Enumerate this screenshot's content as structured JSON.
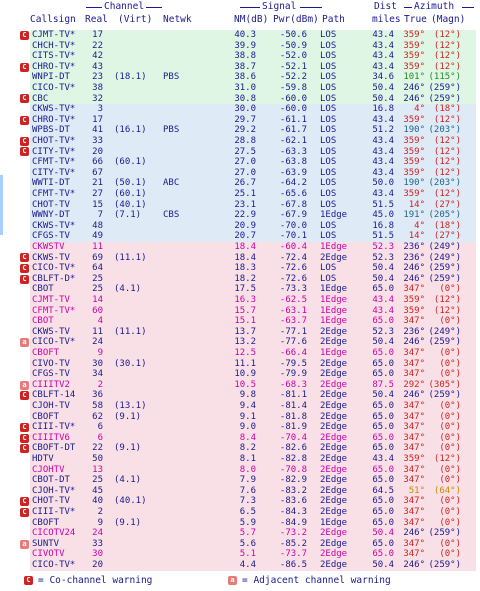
{
  "header": {
    "group_channel": "Channel",
    "group_signal": "Signal",
    "group_azimuth": "Azimuth",
    "group_dist": "Dist",
    "col_callsign": "Callsign",
    "col_real": "Real",
    "col_virt": "(Virt)",
    "col_netwk": "Netwk",
    "col_nm": "NM(dB)",
    "col_pwr": "Pwr(dBm)",
    "col_path": "Path",
    "col_miles": "miles",
    "col_true": "True",
    "col_magn": "(Magn)"
  },
  "colors": {
    "bg_green": "#e0f6e4",
    "bg_blue": "#dfeaf7",
    "bg_pink": "#f8e0e6",
    "text_navy": "#1a1a8c",
    "text_magenta": "#cc00aa",
    "warn_co": "#cc2222",
    "warn_adj": "#e87a7a",
    "az_red": "#cc2222",
    "az_green": "#228822",
    "az_blue": "#226688",
    "az_orange": "#cc8800",
    "az_darkblue": "#1a1a8c"
  },
  "rows": [
    {
      "w": "co",
      "call": "CJMT-TV*",
      "real": "17",
      "virt": "",
      "net": "",
      "nm": "40.3",
      "pwr": "-50.6",
      "path": "LOS",
      "dist": "43.4",
      "tru": "359°",
      "mag": "(12°)",
      "bg": "green",
      "tc": "navy",
      "ac": "red"
    },
    {
      "w": "",
      "call": "CHCH-TV*",
      "real": "22",
      "virt": "",
      "net": "",
      "nm": "39.9",
      "pwr": "-50.9",
      "path": "LOS",
      "dist": "43.4",
      "tru": "359°",
      "mag": "(12°)",
      "bg": "green",
      "tc": "navy",
      "ac": "red"
    },
    {
      "w": "",
      "call": "CITS-TV*",
      "real": "42",
      "virt": "",
      "net": "",
      "nm": "38.8",
      "pwr": "-52.0",
      "path": "LOS",
      "dist": "43.4",
      "tru": "359°",
      "mag": "(12°)",
      "bg": "green",
      "tc": "navy",
      "ac": "red"
    },
    {
      "w": "co",
      "call": "CHRO-TV*",
      "real": "43",
      "virt": "",
      "net": "",
      "nm": "38.7",
      "pwr": "-52.1",
      "path": "LOS",
      "dist": "43.4",
      "tru": "359°",
      "mag": "(12°)",
      "bg": "green",
      "tc": "navy",
      "ac": "red"
    },
    {
      "w": "",
      "call": "WNPI-DT",
      "real": "23",
      "virt": "(18.1)",
      "net": "PBS",
      "nm": "38.6",
      "pwr": "-52.2",
      "path": "LOS",
      "dist": "34.6",
      "tru": "101°",
      "mag": "(115°)",
      "bg": "green",
      "tc": "navy",
      "ac": "green"
    },
    {
      "w": "",
      "call": "CICO-TV*",
      "real": "38",
      "virt": "",
      "net": "",
      "nm": "31.0",
      "pwr": "-59.8",
      "path": "LOS",
      "dist": "50.4",
      "tru": "246°",
      "mag": "(259°)",
      "bg": "green",
      "tc": "navy",
      "ac": "darkblue"
    },
    {
      "w": "co",
      "call": "CBC",
      "real": "32",
      "virt": "",
      "net": "",
      "nm": "30.8",
      "pwr": "-60.0",
      "path": "LOS",
      "dist": "50.4",
      "tru": "246°",
      "mag": "(259°)",
      "bg": "green",
      "tc": "navy",
      "ac": "darkblue"
    },
    {
      "w": "",
      "call": "CKWS-TV*",
      "real": "3",
      "virt": "",
      "net": "",
      "nm": "30.0",
      "pwr": "-60.0",
      "path": "LOS",
      "dist": "16.8",
      "tru": "4°",
      "mag": "(18°)",
      "bg": "blue",
      "tc": "navy",
      "ac": "red"
    },
    {
      "w": "co",
      "call": "CHRO-TV*",
      "real": "17",
      "virt": "",
      "net": "",
      "nm": "29.7",
      "pwr": "-61.1",
      "path": "LOS",
      "dist": "43.4",
      "tru": "359°",
      "mag": "(12°)",
      "bg": "blue",
      "tc": "navy",
      "ac": "red"
    },
    {
      "w": "",
      "call": "WPBS-DT",
      "real": "41",
      "virt": "(16.1)",
      "net": "PBS",
      "nm": "29.2",
      "pwr": "-61.7",
      "path": "LOS",
      "dist": "51.2",
      "tru": "190°",
      "mag": "(203°)",
      "bg": "blue",
      "tc": "navy",
      "ac": "blue"
    },
    {
      "w": "co",
      "call": "CHOT-TV*",
      "real": "33",
      "virt": "",
      "net": "",
      "nm": "28.8",
      "pwr": "-62.1",
      "path": "LOS",
      "dist": "43.4",
      "tru": "359°",
      "mag": "(12°)",
      "bg": "blue",
      "tc": "navy",
      "ac": "red"
    },
    {
      "w": "co",
      "call": "CITY-TV*",
      "real": "20",
      "virt": "",
      "net": "",
      "nm": "27.5",
      "pwr": "-63.3",
      "path": "LOS",
      "dist": "43.4",
      "tru": "359°",
      "mag": "(12°)",
      "bg": "blue",
      "tc": "navy",
      "ac": "red"
    },
    {
      "w": "",
      "call": "CFMT-TV*",
      "real": "66",
      "virt": "(60.1)",
      "net": "",
      "nm": "27.0",
      "pwr": "-63.8",
      "path": "LOS",
      "dist": "43.4",
      "tru": "359°",
      "mag": "(12°)",
      "bg": "blue",
      "tc": "navy",
      "ac": "red"
    },
    {
      "w": "",
      "call": "CITY-TV*",
      "real": "67",
      "virt": "",
      "net": "",
      "nm": "27.0",
      "pwr": "-63.9",
      "path": "LOS",
      "dist": "43.4",
      "tru": "359°",
      "mag": "(12°)",
      "bg": "blue",
      "tc": "navy",
      "ac": "red"
    },
    {
      "w": "",
      "call": "WWTI-DT",
      "real": "21",
      "virt": "(50.1)",
      "net": "ABC",
      "nm": "26.7",
      "pwr": "-64.2",
      "path": "LOS",
      "dist": "50.0",
      "tru": "190°",
      "mag": "(203°)",
      "bg": "blue",
      "tc": "navy",
      "ac": "blue"
    },
    {
      "w": "",
      "call": "CFMT-TV*",
      "real": "27",
      "virt": "(60.1)",
      "net": "",
      "nm": "25.1",
      "pwr": "-65.6",
      "path": "LOS",
      "dist": "43.4",
      "tru": "359°",
      "mag": "(12°)",
      "bg": "blue",
      "tc": "navy",
      "ac": "red"
    },
    {
      "w": "",
      "call": "CHOT-TV",
      "real": "15",
      "virt": "(40.1)",
      "net": "",
      "nm": "23.1",
      "pwr": "-67.8",
      "path": "LOS",
      "dist": "51.5",
      "tru": "14°",
      "mag": "(27°)",
      "bg": "blue",
      "tc": "navy",
      "ac": "red"
    },
    {
      "w": "",
      "call": "WWNY-DT",
      "real": "7",
      "virt": "(7.1)",
      "net": "CBS",
      "nm": "22.9",
      "pwr": "-67.9",
      "path": "1Edge",
      "dist": "45.0",
      "tru": "191°",
      "mag": "(205°)",
      "bg": "blue",
      "tc": "navy",
      "ac": "blue"
    },
    {
      "w": "",
      "call": "CKWS-TV*",
      "real": "48",
      "virt": "",
      "net": "",
      "nm": "20.9",
      "pwr": "-70.0",
      "path": "LOS",
      "dist": "16.8",
      "tru": "4°",
      "mag": "(18°)",
      "bg": "blue",
      "tc": "navy",
      "ac": "red"
    },
    {
      "w": "",
      "call": "CFGS-TV",
      "real": "49",
      "virt": "",
      "net": "",
      "nm": "20.7",
      "pwr": "-70.1",
      "path": "LOS",
      "dist": "51.5",
      "tru": "14°",
      "mag": "(27°)",
      "bg": "blue",
      "tc": "navy",
      "ac": "red"
    },
    {
      "w": "",
      "call": "CKWSTV",
      "real": "11",
      "virt": "",
      "net": "",
      "nm": "18.4",
      "pwr": "-60.4",
      "path": "1Edge",
      "dist": "52.3",
      "tru": "236°",
      "mag": "(249°)",
      "bg": "pink",
      "tc": "magenta",
      "ac": "darkblue"
    },
    {
      "w": "co",
      "call": "CKWS-TV",
      "real": "69",
      "virt": "(11.1)",
      "net": "",
      "nm": "18.4",
      "pwr": "-72.4",
      "path": "2Edge",
      "dist": "52.3",
      "tru": "236°",
      "mag": "(249°)",
      "bg": "pink",
      "tc": "navy",
      "ac": "darkblue"
    },
    {
      "w": "co",
      "call": "CICO-TV*",
      "real": "64",
      "virt": "",
      "net": "",
      "nm": "18.3",
      "pwr": "-72.6",
      "path": "LOS",
      "dist": "50.4",
      "tru": "246°",
      "mag": "(259°)",
      "bg": "pink",
      "tc": "navy",
      "ac": "darkblue"
    },
    {
      "w": "co",
      "call": "CBLFT-D*",
      "real": "25",
      "virt": "",
      "net": "",
      "nm": "18.2",
      "pwr": "-72.6",
      "path": "LOS",
      "dist": "50.4",
      "tru": "246°",
      "mag": "(259°)",
      "bg": "pink",
      "tc": "navy",
      "ac": "darkblue"
    },
    {
      "w": "",
      "call": "CBOT",
      "real": "25",
      "virt": "(4.1)",
      "net": "",
      "nm": "17.5",
      "pwr": "-73.3",
      "path": "1Edge",
      "dist": "65.0",
      "tru": "347°",
      "mag": "(0°)",
      "bg": "pink",
      "tc": "navy",
      "ac": "red"
    },
    {
      "w": "",
      "call": "CJMT-TV",
      "real": "14",
      "virt": "",
      "net": "",
      "nm": "16.3",
      "pwr": "-62.5",
      "path": "1Edge",
      "dist": "43.4",
      "tru": "359°",
      "mag": "(12°)",
      "bg": "pink",
      "tc": "magenta",
      "ac": "red"
    },
    {
      "w": "",
      "call": "CFMT-TV*",
      "real": "60",
      "virt": "",
      "net": "",
      "nm": "15.7",
      "pwr": "-63.1",
      "path": "1Edge",
      "dist": "43.4",
      "tru": "359°",
      "mag": "(12°)",
      "bg": "pink",
      "tc": "magenta",
      "ac": "red"
    },
    {
      "w": "",
      "call": "CBOT",
      "real": "4",
      "virt": "",
      "net": "",
      "nm": "15.1",
      "pwr": "-63.7",
      "path": "1Edge",
      "dist": "65.0",
      "tru": "347°",
      "mag": "(0°)",
      "bg": "pink",
      "tc": "magenta",
      "ac": "red"
    },
    {
      "w": "",
      "call": "CKWS-TV",
      "real": "11",
      "virt": "(11.1)",
      "net": "",
      "nm": "13.7",
      "pwr": "-77.1",
      "path": "2Edge",
      "dist": "52.3",
      "tru": "236°",
      "mag": "(249°)",
      "bg": "pink",
      "tc": "navy",
      "ac": "darkblue"
    },
    {
      "w": "adj",
      "call": "CICO-TV*",
      "real": "24",
      "virt": "",
      "net": "",
      "nm": "13.2",
      "pwr": "-77.6",
      "path": "2Edge",
      "dist": "50.4",
      "tru": "246°",
      "mag": "(259°)",
      "bg": "pink",
      "tc": "navy",
      "ac": "darkblue"
    },
    {
      "w": "",
      "call": "CBOFT",
      "real": "9",
      "virt": "",
      "net": "",
      "nm": "12.5",
      "pwr": "-66.4",
      "path": "1Edge",
      "dist": "65.0",
      "tru": "347°",
      "mag": "(0°)",
      "bg": "pink",
      "tc": "magenta",
      "ac": "red"
    },
    {
      "w": "",
      "call": "CIVO-TV",
      "real": "30",
      "virt": "(30.1)",
      "net": "",
      "nm": "11.1",
      "pwr": "-79.5",
      "path": "2Edge",
      "dist": "65.0",
      "tru": "347°",
      "mag": "(0°)",
      "bg": "pink",
      "tc": "navy",
      "ac": "red"
    },
    {
      "w": "",
      "call": "CFGS-TV",
      "real": "34",
      "virt": "",
      "net": "",
      "nm": "10.9",
      "pwr": "-79.9",
      "path": "2Edge",
      "dist": "65.0",
      "tru": "347°",
      "mag": "(0°)",
      "bg": "pink",
      "tc": "navy",
      "ac": "red"
    },
    {
      "w": "adj",
      "call": "CIIITV2",
      "real": "2",
      "virt": "",
      "net": "",
      "nm": "10.5",
      "pwr": "-68.3",
      "path": "2Edge",
      "dist": "87.5",
      "tru": "292°",
      "mag": "(305°)",
      "bg": "pink",
      "tc": "magenta",
      "ac": "red"
    },
    {
      "w": "co",
      "call": "CBLFT-14",
      "real": "36",
      "virt": "",
      "net": "",
      "nm": "9.8",
      "pwr": "-81.1",
      "path": "2Edge",
      "dist": "50.4",
      "tru": "246°",
      "mag": "(259°)",
      "bg": "pink",
      "tc": "navy",
      "ac": "darkblue"
    },
    {
      "w": "",
      "call": "CJOH-TV",
      "real": "58",
      "virt": "(13.1)",
      "net": "",
      "nm": "9.4",
      "pwr": "-81.4",
      "path": "2Edge",
      "dist": "65.0",
      "tru": "347°",
      "mag": "(0°)",
      "bg": "pink",
      "tc": "navy",
      "ac": "red"
    },
    {
      "w": "",
      "call": "CBOFT",
      "real": "62",
      "virt": "(9.1)",
      "net": "",
      "nm": "9.1",
      "pwr": "-81.8",
      "path": "2Edge",
      "dist": "65.0",
      "tru": "347°",
      "mag": "(0°)",
      "bg": "pink",
      "tc": "navy",
      "ac": "red"
    },
    {
      "w": "co",
      "call": "CIII-TV*",
      "real": "6",
      "virt": "",
      "net": "",
      "nm": "9.0",
      "pwr": "-81.9",
      "path": "2Edge",
      "dist": "65.0",
      "tru": "347°",
      "mag": "(0°)",
      "bg": "pink",
      "tc": "navy",
      "ac": "red"
    },
    {
      "w": "co",
      "call": "CIIITV6",
      "real": "6",
      "virt": "",
      "net": "",
      "nm": "8.4",
      "pwr": "-70.4",
      "path": "2Edge",
      "dist": "65.0",
      "tru": "347°",
      "mag": "(0°)",
      "bg": "pink",
      "tc": "magenta",
      "ac": "red"
    },
    {
      "w": "co",
      "call": "CBOFT-DT",
      "real": "22",
      "virt": "(9.1)",
      "net": "",
      "nm": "8.2",
      "pwr": "-82.6",
      "path": "2Edge",
      "dist": "65.0",
      "tru": "347°",
      "mag": "(0°)",
      "bg": "pink",
      "tc": "navy",
      "ac": "red"
    },
    {
      "w": "",
      "call": "HDTV",
      "real": "50",
      "virt": "",
      "net": "",
      "nm": "8.1",
      "pwr": "-82.8",
      "path": "2Edge",
      "dist": "43.4",
      "tru": "359°",
      "mag": "(12°)",
      "bg": "pink",
      "tc": "navy",
      "ac": "red"
    },
    {
      "w": "",
      "call": "CJOHTV",
      "real": "13",
      "virt": "",
      "net": "",
      "nm": "8.0",
      "pwr": "-70.8",
      "path": "2Edge",
      "dist": "65.0",
      "tru": "347°",
      "mag": "(0°)",
      "bg": "pink",
      "tc": "magenta",
      "ac": "red"
    },
    {
      "w": "",
      "call": "CBOT-DT",
      "real": "25",
      "virt": "(4.1)",
      "net": "",
      "nm": "7.9",
      "pwr": "-82.9",
      "path": "2Edge",
      "dist": "65.0",
      "tru": "347°",
      "mag": "(0°)",
      "bg": "pink",
      "tc": "navy",
      "ac": "red"
    },
    {
      "w": "",
      "call": "CJOH-TV*",
      "real": "45",
      "virt": "",
      "net": "",
      "nm": "7.6",
      "pwr": "-83.2",
      "path": "2Edge",
      "dist": "64.5",
      "tru": "51°",
      "mag": "(64°)",
      "bg": "pink",
      "tc": "navy",
      "ac": "orange"
    },
    {
      "w": "co",
      "call": "CHOT-TV",
      "real": "40",
      "virt": "(40.1)",
      "net": "",
      "nm": "7.3",
      "pwr": "-83.6",
      "path": "2Edge",
      "dist": "65.0",
      "tru": "347°",
      "mag": "(0°)",
      "bg": "pink",
      "tc": "navy",
      "ac": "red"
    },
    {
      "w": "co",
      "call": "CIII-TV*",
      "real": "2",
      "virt": "",
      "net": "",
      "nm": "6.5",
      "pwr": "-84.3",
      "path": "2Edge",
      "dist": "65.0",
      "tru": "347°",
      "mag": "(0°)",
      "bg": "pink",
      "tc": "navy",
      "ac": "red"
    },
    {
      "w": "",
      "call": "CBOFT",
      "real": "9",
      "virt": "(9.1)",
      "net": "",
      "nm": "5.9",
      "pwr": "-84.9",
      "path": "1Edge",
      "dist": "65.0",
      "tru": "347°",
      "mag": "(0°)",
      "bg": "pink",
      "tc": "navy",
      "ac": "red"
    },
    {
      "w": "",
      "call": "CICOTV24",
      "real": "24",
      "virt": "",
      "net": "",
      "nm": "5.7",
      "pwr": "-73.2",
      "path": "2Edge",
      "dist": "50.4",
      "tru": "246°",
      "mag": "(259°)",
      "bg": "pink",
      "tc": "magenta",
      "ac": "darkblue"
    },
    {
      "w": "adj",
      "call": "SUNTV",
      "real": "33",
      "virt": "",
      "net": "",
      "nm": "5.6",
      "pwr": "-85.2",
      "path": "2Edge",
      "dist": "65.0",
      "tru": "347°",
      "mag": "(0°)",
      "bg": "pink",
      "tc": "navy",
      "ac": "red"
    },
    {
      "w": "",
      "call": "CIVOTV",
      "real": "30",
      "virt": "",
      "net": "",
      "nm": "5.1",
      "pwr": "-73.7",
      "path": "2Edge",
      "dist": "65.0",
      "tru": "347°",
      "mag": "(0°)",
      "bg": "pink",
      "tc": "magenta",
      "ac": "red"
    },
    {
      "w": "",
      "call": "CICO-TV*",
      "real": "20",
      "virt": "",
      "net": "",
      "nm": "4.4",
      "pwr": "-86.5",
      "path": "2Edge",
      "dist": "50.4",
      "tru": "246°",
      "mag": "(259°)",
      "bg": "pink",
      "tc": "navy",
      "ac": "darkblue"
    }
  ],
  "legend": {
    "co_icon": "C",
    "co_label": "= Co-channel warning",
    "adj_icon": "a",
    "adj_label": "= Adjacent channel warning"
  },
  "warn_glyph": {
    "co": "C",
    "adj": "a"
  }
}
